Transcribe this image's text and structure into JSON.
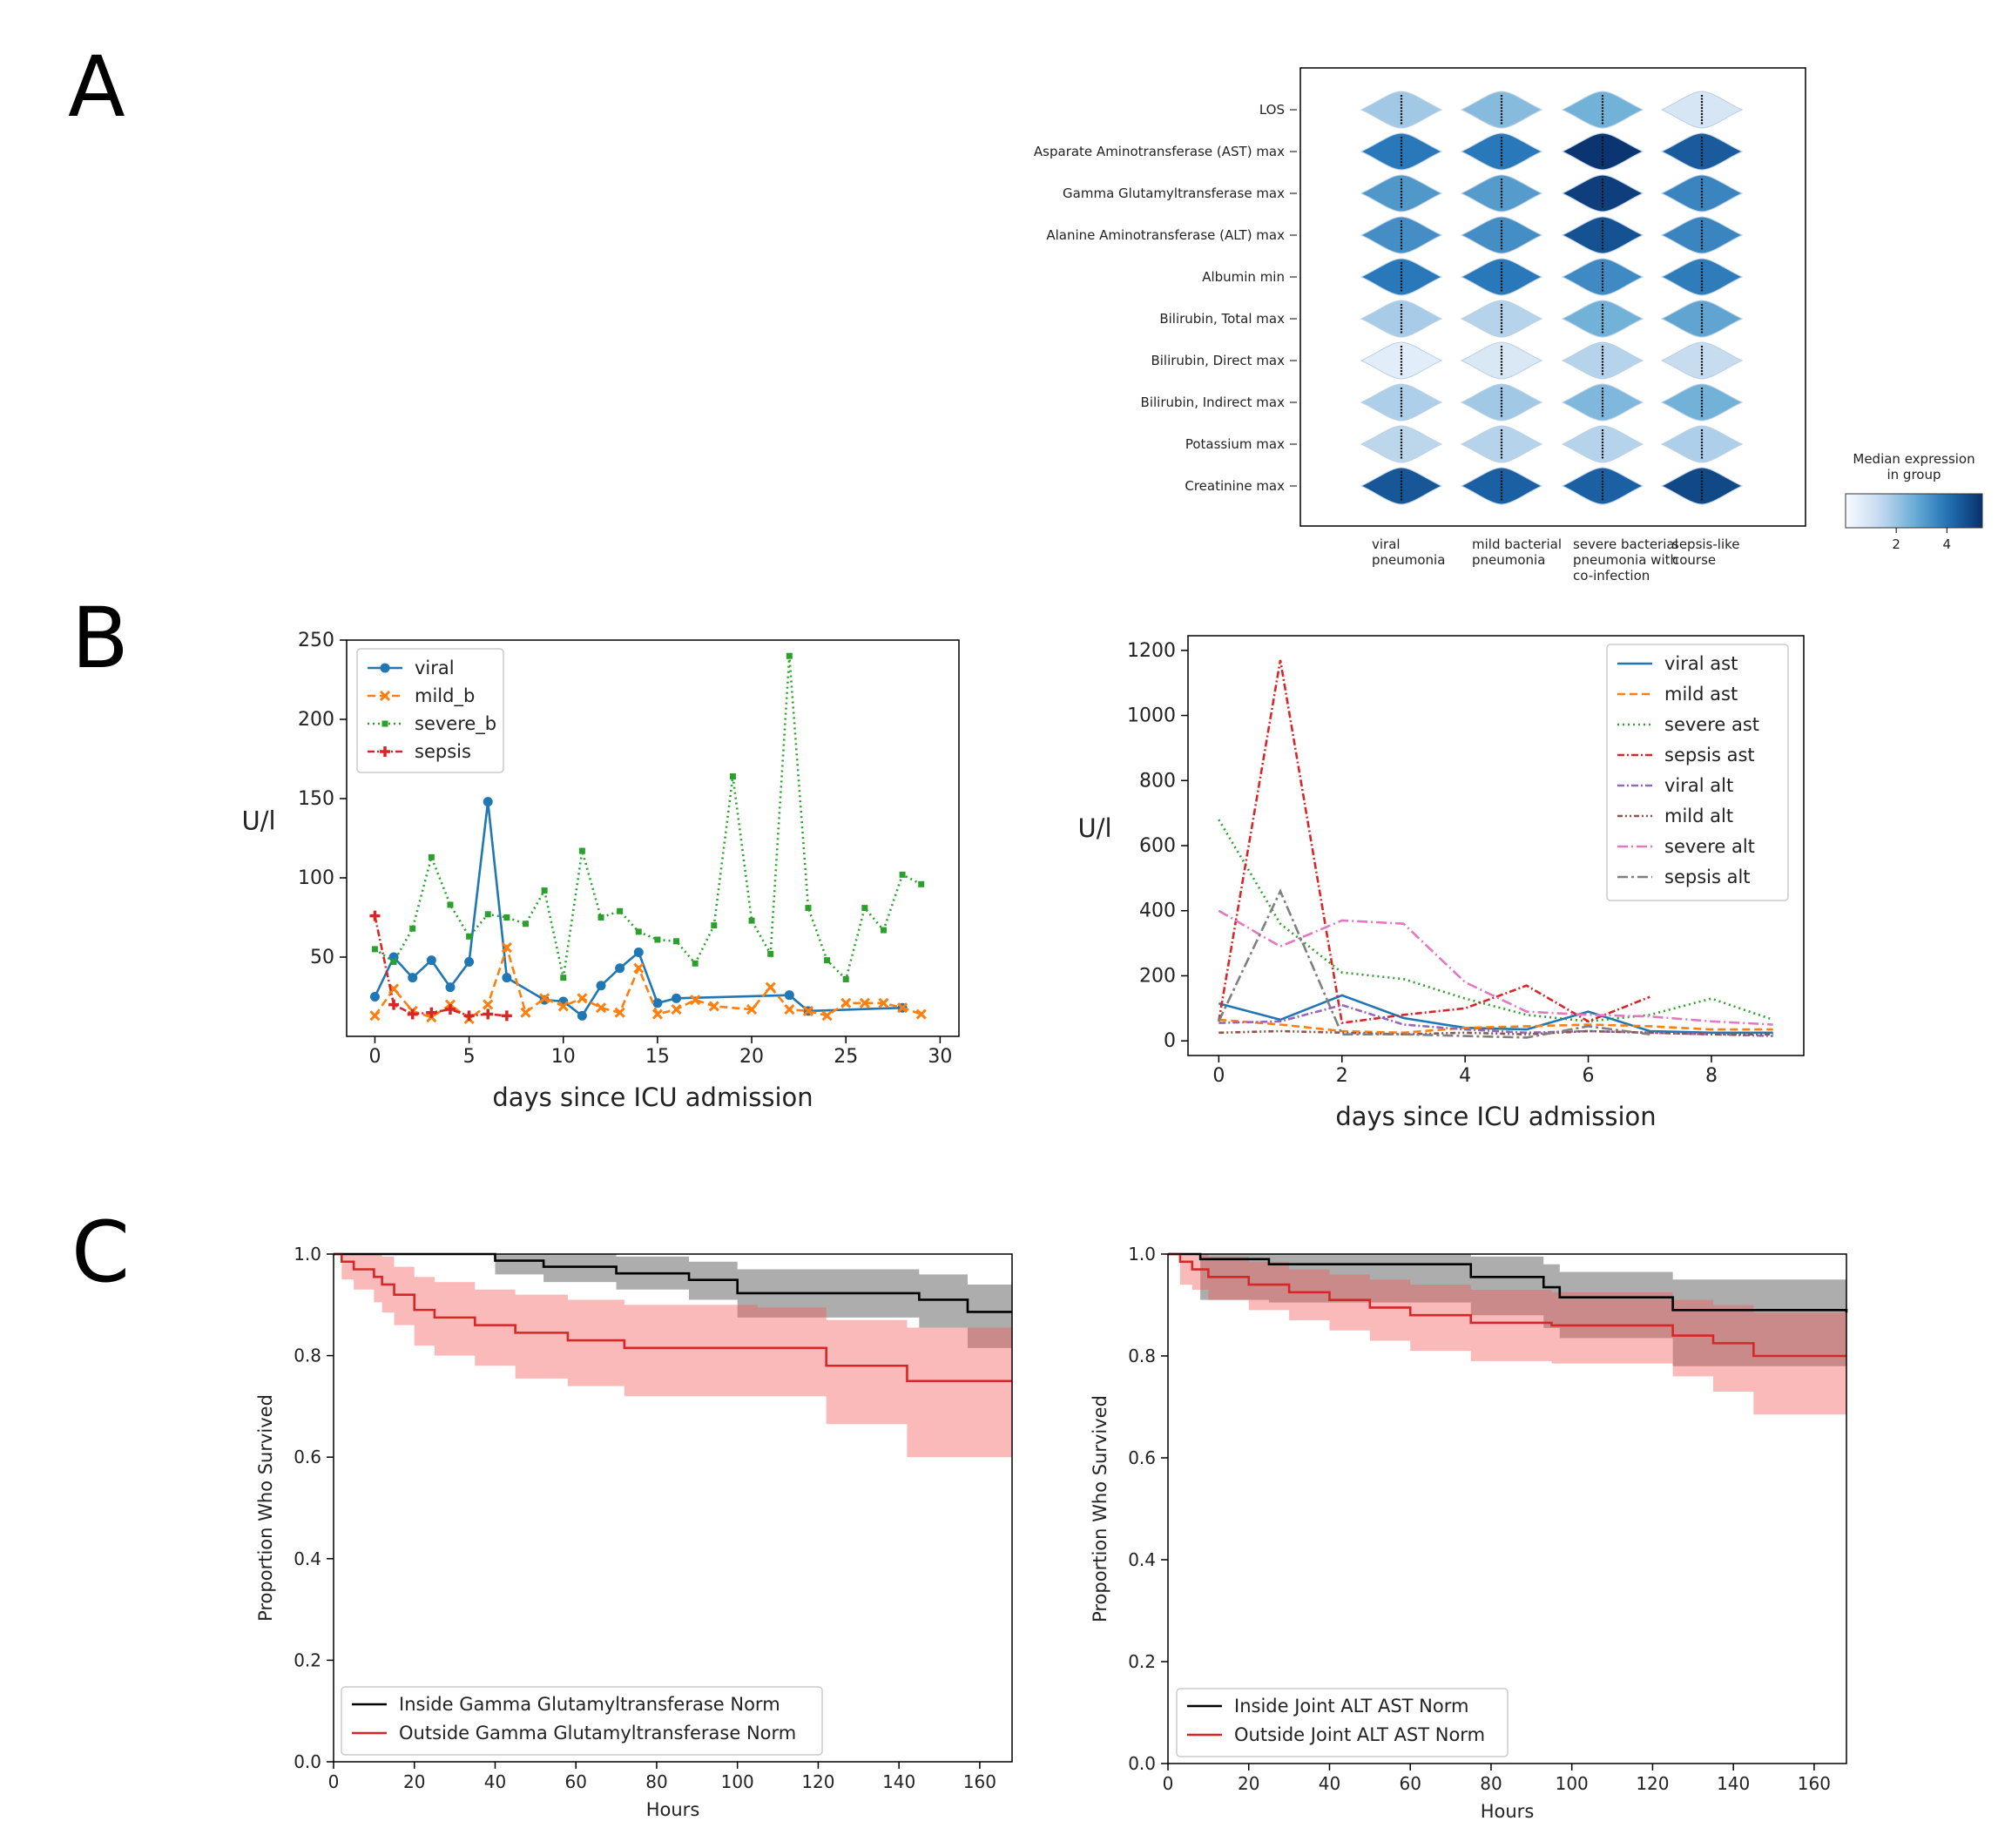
{
  "panel_letters": [
    "A",
    "B",
    "C"
  ],
  "chart_data": [
    {
      "id": "A",
      "type": "violin",
      "categories": [
        "viral\npneumonia",
        "mild bacterial\npneumonia",
        "severe bacterial\npneumonia with\nco-infection",
        "sepsis-like\ncourse"
      ],
      "features": [
        "LOS",
        "Asparate Aminotransferase (AST)  max",
        "Gamma Glutamyltransferase  max",
        "Alanine Aminotransferase (ALT)  max",
        "Albumin  min",
        "Bilirubin, Total  max",
        "Bilirubin, Direct  max",
        "Bilirubin, Indirect  max",
        "Potassium  max",
        "Creatinine  max"
      ],
      "median": [
        [
          1.9,
          2.3,
          2.6,
          0.9
        ],
        [
          3.9,
          3.9,
          5.3,
          4.5
        ],
        [
          3.2,
          3.1,
          5.1,
          3.6
        ],
        [
          3.4,
          3.4,
          4.7,
          3.6
        ],
        [
          3.9,
          3.9,
          3.5,
          3.8
        ],
        [
          1.8,
          1.6,
          2.6,
          2.9
        ],
        [
          0.6,
          0.8,
          1.6,
          1.3
        ],
        [
          1.7,
          1.9,
          2.4,
          2.6
        ],
        [
          1.5,
          1.6,
          1.6,
          1.7
        ],
        [
          4.6,
          4.4,
          4.4,
          4.9
        ]
      ],
      "colorbar": {
        "title": "Median expression\nin group",
        "ticks": [
          2,
          4
        ],
        "range": [
          0,
          5.4
        ]
      }
    },
    {
      "id": "B-left",
      "type": "line",
      "xlabel": "days since ICU admission",
      "ylabel": "U/l",
      "xlim": [
        -1.5,
        31
      ],
      "ylim": [
        0,
        250
      ],
      "xticks": [
        0,
        5,
        10,
        15,
        20,
        25,
        30
      ],
      "yticks": [
        50,
        100,
        150,
        200,
        250
      ],
      "legend": "top-left",
      "series": [
        {
          "name": "viral",
          "color": "#1f77b4",
          "dash": "",
          "marker": "circle",
          "x": [
            0,
            1,
            2,
            3,
            4,
            5,
            6,
            7,
            9,
            10,
            11,
            12,
            13,
            14,
            15,
            16,
            22,
            23,
            28
          ],
          "y": [
            25,
            50,
            37,
            48,
            31,
            47,
            148,
            37,
            23,
            22,
            13,
            32,
            43,
            53,
            21,
            24,
            26,
            16,
            18
          ]
        },
        {
          "name": "mild_b",
          "color": "#ff7f0e",
          "dash": "9,5",
          "marker": "x",
          "x": [
            0,
            1,
            2,
            3,
            4,
            5,
            6,
            7,
            8,
            9,
            10,
            11,
            12,
            13,
            14,
            15,
            16,
            17,
            18,
            20,
            21,
            22,
            23,
            24,
            25,
            26,
            27,
            28,
            29
          ],
          "y": [
            13,
            30,
            16,
            12,
            20,
            11,
            20,
            56,
            15,
            24,
            19,
            24,
            18,
            15,
            43,
            14,
            17,
            23,
            19,
            17,
            31,
            17,
            16,
            13,
            21,
            21,
            21,
            18,
            14
          ]
        },
        {
          "name": "severe_b",
          "color": "#2ca02c",
          "dash": "2,4",
          "marker": "square",
          "x": [
            0,
            1,
            2,
            3,
            4,
            5,
            6,
            7,
            8,
            9,
            10,
            11,
            12,
            13,
            14,
            15,
            16,
            17,
            18,
            19,
            20,
            21,
            22,
            23,
            24,
            25,
            26,
            27,
            28,
            29
          ],
          "y": [
            55,
            47,
            68,
            113,
            83,
            63,
            77,
            75,
            71,
            92,
            37,
            117,
            75,
            79,
            66,
            61,
            60,
            46,
            70,
            164,
            73,
            52,
            240,
            81,
            48,
            36,
            81,
            67,
            102,
            96
          ]
        },
        {
          "name": "sepsis",
          "color": "#d62728",
          "dash": "8,3,2,3",
          "marker": "plus",
          "x": [
            0,
            1,
            2,
            3,
            4,
            5,
            6,
            7
          ],
          "y": [
            76,
            20,
            14,
            15,
            17,
            13,
            14,
            13
          ]
        }
      ]
    },
    {
      "id": "B-right",
      "type": "line",
      "xlabel": "days since ICU admission",
      "ylabel": "U/l",
      "xlim": [
        -0.5,
        9.5
      ],
      "ylim": [
        -45,
        1245
      ],
      "xticks": [
        0,
        2,
        4,
        6,
        8
      ],
      "yticks": [
        0,
        200,
        400,
        600,
        800,
        1000,
        1200
      ],
      "legend": "top-right",
      "series": [
        {
          "name": "viral  ast",
          "color": "#1f77b4",
          "dash": "",
          "x": [
            0,
            1,
            2,
            3,
            4,
            5,
            6,
            7,
            8,
            9
          ],
          "y": [
            115,
            65,
            140,
            70,
            40,
            35,
            90,
            30,
            25,
            25
          ]
        },
        {
          "name": "mild     ast",
          "color": "#ff7f0e",
          "dash": "9,5",
          "x": [
            0,
            1,
            2,
            3,
            4,
            5,
            6,
            7,
            8,
            9
          ],
          "y": [
            65,
            50,
            30,
            25,
            40,
            45,
            50,
            45,
            35,
            35
          ]
        },
        {
          "name": "severe     ast",
          "color": "#2ca02c",
          "dash": "2,4",
          "x": [
            0,
            1,
            2,
            3,
            4,
            5,
            6,
            7,
            8,
            9
          ],
          "y": [
            680,
            360,
            210,
            190,
            130,
            80,
            60,
            80,
            130,
            65
          ]
        },
        {
          "name": "sepsis  ast",
          "color": "#d62728",
          "dash": "8,3,2,3",
          "x": [
            0,
            1,
            2,
            3,
            4,
            5,
            6,
            7
          ],
          "y": [
            60,
            1170,
            55,
            80,
            100,
            170,
            60,
            135
          ]
        },
        {
          "name": "viral  alt",
          "color": "#9467bd",
          "dash": "8,3,2,3",
          "x": [
            0,
            1,
            2,
            3,
            4,
            5,
            6,
            7,
            8,
            9
          ],
          "y": [
            55,
            60,
            110,
            50,
            35,
            25,
            30,
            25,
            20,
            15
          ]
        },
        {
          "name": "mild     alt",
          "color": "#8c564b",
          "dash": "6,3,2,3,2,3",
          "x": [
            0,
            1,
            2,
            3,
            4,
            5,
            6,
            7,
            8,
            9
          ],
          "y": [
            25,
            30,
            25,
            20,
            25,
            20,
            30,
            25,
            20,
            20
          ]
        },
        {
          "name": "severe     alt",
          "color": "#e377c2",
          "dash": "12,4,2,4",
          "x": [
            0,
            1,
            2,
            3,
            4,
            5,
            6,
            7,
            8,
            9
          ],
          "y": [
            400,
            290,
            370,
            360,
            180,
            90,
            80,
            75,
            60,
            50
          ]
        },
        {
          "name": "sepsis  alt",
          "color": "#7f7f7f",
          "dash": "12,4,3,4",
          "x": [
            0,
            1,
            2,
            3,
            4,
            5,
            6,
            7
          ],
          "y": [
            60,
            460,
            20,
            20,
            15,
            10,
            45,
            20
          ]
        }
      ]
    },
    {
      "id": "C-left",
      "type": "step",
      "xlabel": "Hours",
      "ylabel": "Proportion Who Survived",
      "xlim": [
        0,
        168
      ],
      "ylim": [
        0,
        1
      ],
      "xticks": [
        0,
        20,
        40,
        60,
        80,
        100,
        120,
        140,
        160
      ],
      "yticks": [
        0.0,
        0.2,
        0.4,
        0.6,
        0.8,
        1.0
      ],
      "legend": "bottom-left",
      "series": [
        {
          "name": "Inside Gamma Glutamyltransferase Norm",
          "color": "#000000",
          "x": [
            0,
            40,
            52,
            70,
            88,
            100,
            145,
            157,
            168
          ],
          "y": [
            1.0,
            0.987,
            0.975,
            0.962,
            0.949,
            0.923,
            0.91,
            0.886,
            0.886
          ],
          "ci_low": [
            1.0,
            0.96,
            0.945,
            0.93,
            0.91,
            0.875,
            0.855,
            0.815,
            0.815
          ],
          "ci_high": [
            1.0,
            1.0,
            1.0,
            0.995,
            0.985,
            0.97,
            0.96,
            0.94,
            0.94
          ]
        },
        {
          "name": "Outside Gamma Glutamyltransferase Norm",
          "color": "#d62728",
          "x": [
            0,
            2,
            5,
            10,
            12,
            15,
            20,
            25,
            35,
            45,
            58,
            72,
            105,
            122,
            142,
            168
          ],
          "y": [
            1.0,
            0.985,
            0.97,
            0.955,
            0.94,
            0.92,
            0.89,
            0.875,
            0.86,
            0.845,
            0.83,
            0.815,
            0.815,
            0.78,
            0.75,
            0.75
          ],
          "ci_low": [
            1.0,
            0.95,
            0.93,
            0.905,
            0.885,
            0.86,
            0.82,
            0.8,
            0.78,
            0.755,
            0.74,
            0.72,
            0.72,
            0.665,
            0.6,
            0.6
          ],
          "ci_high": [
            1.0,
            1.0,
            1.0,
            1.0,
            0.995,
            0.975,
            0.955,
            0.945,
            0.93,
            0.92,
            0.91,
            0.9,
            0.895,
            0.87,
            0.855,
            0.855
          ]
        }
      ]
    },
    {
      "id": "C-right",
      "type": "step",
      "xlabel": "Hours",
      "ylabel": "Proportion Who Survived",
      "xlim": [
        0,
        168
      ],
      "ylim": [
        0,
        1
      ],
      "xticks": [
        0,
        20,
        40,
        60,
        80,
        100,
        120,
        140,
        160
      ],
      "yticks": [
        0.0,
        0.2,
        0.4,
        0.6,
        0.8,
        1.0
      ],
      "legend": "bottom-left",
      "series": [
        {
          "name": "Inside Joint ALT AST Norm",
          "color": "#000000",
          "x": [
            0,
            8,
            25,
            75,
            93,
            97,
            125,
            168
          ],
          "y": [
            1.0,
            0.99,
            0.98,
            0.955,
            0.935,
            0.915,
            0.89,
            0.885
          ],
          "ci_low": [
            1.0,
            0.91,
            0.905,
            0.88,
            0.855,
            0.835,
            0.78,
            0.76
          ],
          "ci_high": [
            1.0,
            1.0,
            1.0,
            0.995,
            0.98,
            0.965,
            0.95,
            0.95
          ]
        },
        {
          "name": "Outside Joint ALT AST Norm",
          "color": "#d62728",
          "x": [
            0,
            3,
            6,
            10,
            20,
            30,
            40,
            50,
            60,
            75,
            85,
            95,
            125,
            135,
            145,
            168
          ],
          "y": [
            1.0,
            0.985,
            0.97,
            0.955,
            0.94,
            0.925,
            0.91,
            0.895,
            0.88,
            0.865,
            0.865,
            0.86,
            0.84,
            0.825,
            0.8,
            0.8
          ],
          "ci_low": [
            1.0,
            0.94,
            0.93,
            0.91,
            0.89,
            0.87,
            0.85,
            0.83,
            0.81,
            0.79,
            0.79,
            0.785,
            0.76,
            0.73,
            0.685,
            0.685
          ],
          "ci_high": [
            1.0,
            1.0,
            1.0,
            0.995,
            0.985,
            0.97,
            0.96,
            0.95,
            0.94,
            0.93,
            0.93,
            0.925,
            0.91,
            0.9,
            0.885,
            0.885
          ]
        }
      ]
    }
  ]
}
